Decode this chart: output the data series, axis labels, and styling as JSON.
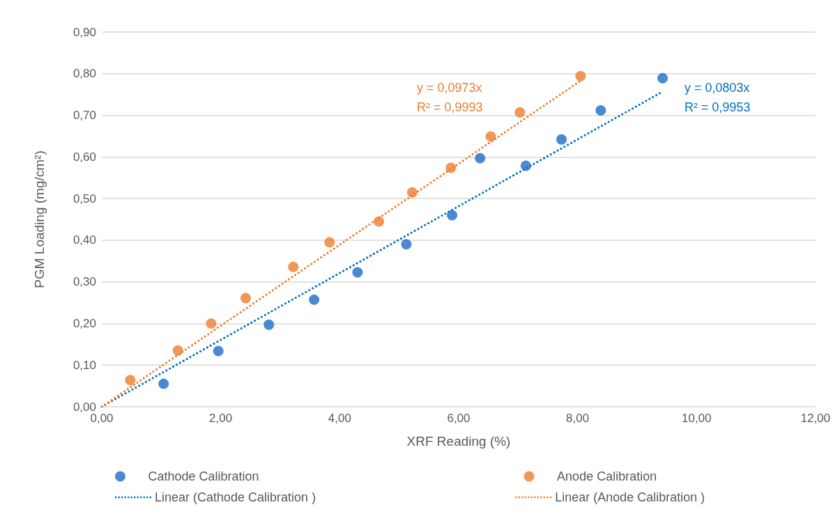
{
  "chart_data": {
    "type": "scatter",
    "xlabel": "XRF Reading (%)",
    "ylabel": "PGM Loading (mg/cm²)",
    "xlim": [
      0,
      12
    ],
    "xticks": [
      {
        "value": 0,
        "label": "0,00"
      },
      {
        "value": 2,
        "label": "2,00"
      },
      {
        "value": 4,
        "label": "4,00"
      },
      {
        "value": 6,
        "label": "6,00"
      },
      {
        "value": 8,
        "label": "8,00"
      },
      {
        "value": 10,
        "label": "10,00"
      },
      {
        "value": 12,
        "label": "12,00"
      }
    ],
    "ylim": [
      0,
      0.9
    ],
    "yticks": [
      {
        "value": 0,
        "label": "0,00"
      },
      {
        "value": 0.1,
        "label": "0,10"
      },
      {
        "value": 0.2,
        "label": "0,20"
      },
      {
        "value": 0.3,
        "label": "0,30"
      },
      {
        "value": 0.4,
        "label": "0,40"
      },
      {
        "value": 0.5,
        "label": "0,50"
      },
      {
        "value": 0.6,
        "label": "0,60"
      },
      {
        "value": 0.7,
        "label": "0,70"
      },
      {
        "value": 0.8,
        "label": "0,80"
      },
      {
        "value": 0.9,
        "label": "0,90"
      }
    ],
    "grid": "y",
    "legend": "bottom",
    "marker": "circle",
    "series": [
      {
        "name": "Cathode Calibration",
        "color": "#1f6cc8",
        "x": [
          1.04,
          1.96,
          2.81,
          3.57,
          4.3,
          5.12,
          5.89,
          6.36,
          7.13,
          7.73,
          8.39,
          9.43
        ],
        "values": [
          0.055,
          0.134,
          0.197,
          0.257,
          0.323,
          0.39,
          0.46,
          0.597,
          0.579,
          0.642,
          0.712,
          0.789
        ]
      },
      {
        "name": "Anode Calibration",
        "color": "#ed7d31",
        "x": [
          0.48,
          1.28,
          1.84,
          2.42,
          3.22,
          3.83,
          4.66,
          5.22,
          5.87,
          6.54,
          7.03,
          8.05
        ],
        "values": [
          0.064,
          0.135,
          0.2,
          0.261,
          0.336,
          0.395,
          0.445,
          0.515,
          0.574,
          0.649,
          0.707,
          0.794
        ]
      },
      {
        "name": "Linear (Cathode Calibration )",
        "type": "line",
        "line_style": "dotted",
        "marker": "none",
        "color": "#0070c0",
        "x": [
          0,
          9.43
        ],
        "values": [
          0,
          0.757
        ]
      },
      {
        "name": "Linear (Anode Calibration )",
        "type": "line",
        "line_style": "dotted",
        "marker": "none",
        "color": "#ed7d31",
        "x": [
          0,
          8.05
        ],
        "values": [
          0,
          0.783
        ]
      }
    ],
    "annotations": [
      "y = 0,0973x\nR² = 0,9993",
      "y = 0,0803x\nR² = 0,9953"
    ]
  }
}
